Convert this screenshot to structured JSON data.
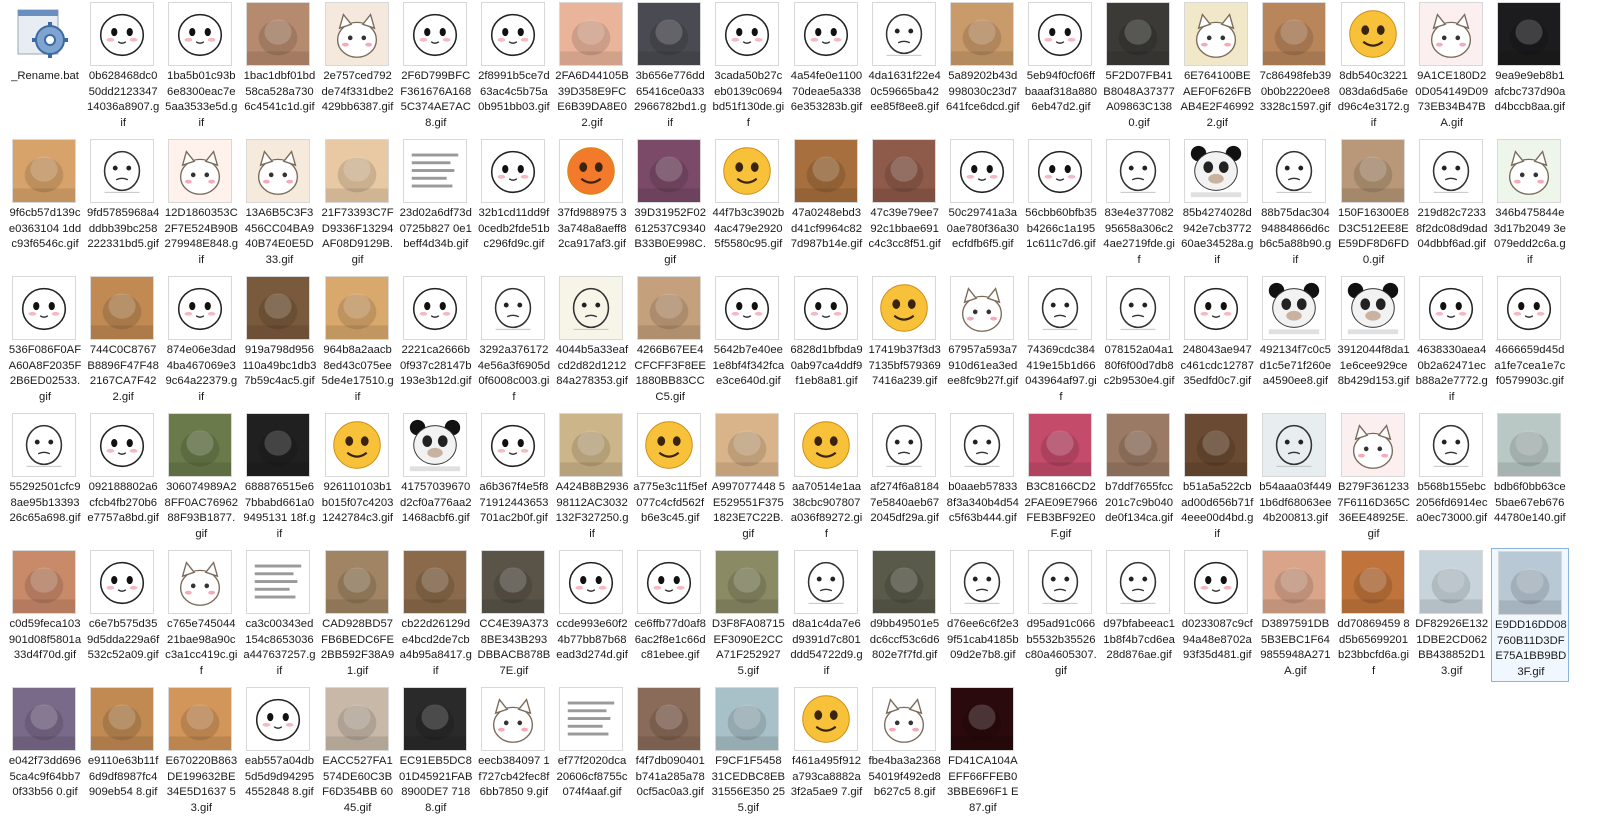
{
  "window": {
    "selected_item": "E9DD16DD08760B11D3DFE75A1BB9BD3F.gif"
  },
  "files": [
    {
      "name": "_Rename.bat",
      "icon": "gear-icon",
      "kind": "bat"
    },
    {
      "name": "0b628468dc050dd212334714036a8907.gif",
      "icon": "blob-face-sunglasses",
      "kind": "blob",
      "bg": "#ffffff"
    },
    {
      "name": "1ba5b01c93b6e8300eac7e5aa3533e5d.gif",
      "icon": "blob-face",
      "kind": "blob",
      "bg": "#ffffff"
    },
    {
      "name": "1bac1dbf01bd58ca528a7306c4541c1d.gif",
      "icon": "baby-photo",
      "kind": "photo",
      "bg": "#b58a6e"
    },
    {
      "name": "2e757ced792de74f331dbe2429bb6387.gif",
      "icon": "cartoon-animals",
      "kind": "cartoon",
      "bg": "#f4e9dc"
    },
    {
      "name": "2F6D799BFCF361676A1685C374AE7AC8.gif",
      "icon": "blob-face-caption",
      "kind": "blob",
      "bg": "#ffffff"
    },
    {
      "name": "2f8991b5ce7d63ac4c5b75a0b951bb03.gif",
      "icon": "blob-face",
      "kind": "blob",
      "bg": "#ffffff"
    },
    {
      "name": "2FA6D44105B39D358E9FCE6B39DA8E02.gif",
      "icon": "crying-baby-photo",
      "kind": "photo",
      "bg": "#e9b49a"
    },
    {
      "name": "3b656e776dd65416ce0a332966782bd1.gif",
      "icon": "man-photo-caption",
      "kind": "photo",
      "bg": "#4a4a52"
    },
    {
      "name": "3cada50b27ceb0139c0694bd51f130de.gif",
      "icon": "blob-face-blush",
      "kind": "blob",
      "bg": "#ffffff"
    },
    {
      "name": "4a54fe0e110070deae5a3386e353283b.gif",
      "icon": "blob-face",
      "kind": "blob",
      "bg": "#ffffff"
    },
    {
      "name": "4da1631f22e40c59665ba42ee85f8ee8.gif",
      "icon": "sketch-face",
      "kind": "sketch",
      "bg": "#ffffff"
    },
    {
      "name": "5a89202b43d998030c23d7641fce6dcd.gif",
      "icon": "dog-photo",
      "kind": "photo",
      "bg": "#c99a6a"
    },
    {
      "name": "5eb94f0cf06ffbaaaf318a8806eb47d2.gif",
      "icon": "blob-face",
      "kind": "blob",
      "bg": "#ffffff"
    },
    {
      "name": "5F2D07FB41B8048A37377A09863C1380.gif",
      "icon": "man-photo",
      "kind": "photo",
      "bg": "#3b3a36"
    },
    {
      "name": "6E764100BEAEF0F626FBAB4E2F469922.gif",
      "icon": "cartoon-character",
      "kind": "cartoon",
      "bg": "#f1e7c9"
    },
    {
      "name": "7c86498feb390b0b2220ee83328c1597.gif",
      "icon": "dog-photo",
      "kind": "photo",
      "bg": "#b9865c"
    },
    {
      "name": "8db540c3221083da6d5a6ed96c4e3172.gif",
      "icon": "emoji-faces",
      "kind": "emoji",
      "bg": "#ffffff"
    },
    {
      "name": "9A1CE180D20D054149D0973EB34B47BA.gif",
      "icon": "cartoon-cat",
      "kind": "cartoon",
      "bg": "#fbeff0"
    },
    {
      "name": "9ea9e9eb8b1afcbc737d90ad4bccb8aa.gif",
      "icon": "dark-photo",
      "kind": "photo",
      "bg": "#1c1c1e"
    },
    {
      "name": "9f6cb57d139ce0363104 1ddc93f6546c.gif",
      "icon": "dog-photo",
      "kind": "photo",
      "bg": "#d8a36a"
    },
    {
      "name": "9fd5785968a4ddbb39bc258222331bd5.gif",
      "icon": "sketch-face",
      "kind": "sketch",
      "bg": "#ffffff"
    },
    {
      "name": "12D1860353C2F7E524B90B279948E848.gif",
      "icon": "cartoon-hand",
      "kind": "cartoon",
      "bg": "#fff2ec"
    },
    {
      "name": "13A6B5C3F3456CC04BA940B74E0E5D33.gif",
      "icon": "cartoon-animals",
      "kind": "cartoon",
      "bg": "#f5eadc"
    },
    {
      "name": "21F73393C7FD9336F13294AF08D9129B.gif",
      "icon": "cat-photo",
      "kind": "photo",
      "bg": "#e8c9a4"
    },
    {
      "name": "23d02a6df73d0725b827 0e1beff4d34b.gif",
      "icon": "text-caption",
      "kind": "text",
      "bg": "#ffffff"
    },
    {
      "name": "32b1cd11dd9f0cedb2fde51bc296fd9c.gif",
      "icon": "crying-faces",
      "kind": "blob",
      "bg": "#ffffff"
    },
    {
      "name": "37fd988975 33a748a8aeff82ca917af3.gif",
      "icon": "orange-emoji",
      "kind": "emoji",
      "bg": "#ffffff"
    },
    {
      "name": "39D31952F02612537C9340B33B0E998C.gif",
      "icon": "pig-photo",
      "kind": "photo",
      "bg": "#7a4a68"
    },
    {
      "name": "44f7b3c3902b4ac479e29205f5580c95.gif",
      "icon": "yellow-emoji",
      "kind": "emoji",
      "bg": "#ffffff"
    },
    {
      "name": "47a0248ebd3d41cf9964c827d987b14e.gif",
      "icon": "dog-photo",
      "kind": "photo",
      "bg": "#a66f3d"
    },
    {
      "name": "47c39e79ee792c1bbae691c4c3cc8f51.gif",
      "icon": "man-photo",
      "kind": "photo",
      "bg": "#8e5a4a"
    },
    {
      "name": "50c29741a3a0ae780f36a30ecfdfb6f5.gif",
      "icon": "blob-face",
      "kind": "blob",
      "bg": "#ffffff"
    },
    {
      "name": "56cbb60bfb35b4266c1a1951c611c7d6.gif",
      "icon": "blob-face",
      "kind": "blob",
      "bg": "#ffffff"
    },
    {
      "name": "83e4e37708295658a306c24ae2719fde.gif",
      "icon": "comic-drawing",
      "kind": "sketch",
      "bg": "#ffffff"
    },
    {
      "name": "85b4274028d942e7cb377260ae34528a.gif",
      "icon": "panda-meme",
      "kind": "panda",
      "bg": "#ffffff"
    },
    {
      "name": "88b75dac30494884866d6cb6c5a88b90.gif",
      "icon": "sketch-ghost",
      "kind": "sketch",
      "bg": "#ffffff"
    },
    {
      "name": "150F16300E8D3C512EE8EE59DF8D6FD0.gif",
      "icon": "hamster-photo",
      "kind": "photo",
      "bg": "#b89878"
    },
    {
      "name": "219d82c72338f2dc08d9dad04dbbf6ad.gif",
      "icon": "sketch-face",
      "kind": "sketch",
      "bg": "#ffffff"
    },
    {
      "name": "346b475844e3d17b2049 3e079edd2c6a.gif",
      "icon": "cartoon-character",
      "kind": "cartoon",
      "bg": "#eef6ec"
    },
    {
      "name": "536F086F0AFA60A8F2035F2B6ED02533.gif",
      "icon": "blob-face-sunglasses",
      "kind": "blob",
      "bg": "#ffffff"
    },
    {
      "name": "744C0C8767B8896F47F482167CA7F422.gif",
      "icon": "dog-photo",
      "kind": "photo",
      "bg": "#c08a52"
    },
    {
      "name": "874e06e3dad4ba467069e39c64a22379.gif",
      "icon": "blob-face",
      "kind": "blob",
      "bg": "#ffffff"
    },
    {
      "name": "919a798d956110a49bc1db37b59c4ac5.gif",
      "icon": "dog-photo-caption",
      "kind": "photo",
      "bg": "#7a5a3c"
    },
    {
      "name": "964b8a2aacb8ed43c075ee5de4e17510.gif",
      "icon": "cat-photo",
      "kind": "photo",
      "bg": "#d9a86c"
    },
    {
      "name": "2221ca2666b0f937c28147b193e3b12d.gif",
      "icon": "blob-face",
      "kind": "blob",
      "bg": "#ffffff"
    },
    {
      "name": "3292a3761724e56a3f6905d0f6008c003.gif",
      "icon": "comic-drawing",
      "kind": "sketch",
      "bg": "#ffffff"
    },
    {
      "name": "4044b5a33eafcd2d82d121284a278353.gif",
      "icon": "comic-caption",
      "kind": "sketch",
      "bg": "#f7f4e8"
    },
    {
      "name": "4266B67EE4CFCFF3F8EE1880BB83CCC5.gif",
      "icon": "baby-photo",
      "kind": "photo",
      "bg": "#c4a07c"
    },
    {
      "name": "5642b7e40ee1e8bf4f342fcae3ce640d.gif",
      "icon": "blob-face-blush",
      "kind": "blob",
      "bg": "#ffffff"
    },
    {
      "name": "6828d1bfbda90ab97ca4ddf9f1eb8a81.gif",
      "icon": "blob-face",
      "kind": "blob",
      "bg": "#ffffff"
    },
    {
      "name": "17419b37f3d37135bf5793697416a239.gif",
      "icon": "yellow-emoji",
      "kind": "emoji",
      "bg": "#ffffff"
    },
    {
      "name": "67957a593a7910d61ea3edee8fc9b27f.gif",
      "icon": "cartoon-rabbit",
      "kind": "cartoon",
      "bg": "#ffffff"
    },
    {
      "name": "74369cdc384419e15b1d66043964af97.gif",
      "icon": "sketch-face",
      "kind": "sketch",
      "bg": "#ffffff"
    },
    {
      "name": "078152a04a180f6f00d7db8c2b9530e4.gif",
      "icon": "sketch-face",
      "kind": "sketch",
      "bg": "#ffffff"
    },
    {
      "name": "248043ae947c461cdc1278735edfd0c7.gif",
      "icon": "blob-face",
      "kind": "blob",
      "bg": "#ffffff"
    },
    {
      "name": "492134f7c0c5d1c5e71f260ea4590ee8.gif",
      "icon": "panda-meme",
      "kind": "panda",
      "bg": "#ffffff"
    },
    {
      "name": "3912044f8da11e6cee929ce8b429d153.gif",
      "icon": "panda-meme",
      "kind": "panda",
      "bg": "#ffffff"
    },
    {
      "name": "4638330aea40b2a62471ecb88a2e7772.gif",
      "icon": "blob-face",
      "kind": "blob",
      "bg": "#ffffff"
    },
    {
      "name": "4666659d45da1fe7cea1e7cf0579903c.gif",
      "icon": "crying-face",
      "kind": "blob",
      "bg": "#ffffff"
    },
    {
      "name": "55292501cfc98ae95b1339326c65a698.gif",
      "icon": "sketch-face",
      "kind": "sketch",
      "bg": "#ffffff"
    },
    {
      "name": "092188802a6cfcb4fb270b6e7757a8bd.gif",
      "icon": "blob-face",
      "kind": "blob",
      "bg": "#ffffff"
    },
    {
      "name": "306074989A28FF0AC7696288F93B1877.gif",
      "icon": "animal-photo",
      "kind": "photo",
      "bg": "#6a7a4a"
    },
    {
      "name": "688876515e67bbabd661a09495131 18f.gif",
      "icon": "dark-screen",
      "kind": "photo",
      "bg": "#202020"
    },
    {
      "name": "926110103b1b015f07c42031242784c3.gif",
      "icon": "yellow-emoji",
      "kind": "emoji",
      "bg": "#ffffff"
    },
    {
      "name": "41757039670d2cf0a776aa21468acbf6.gif",
      "icon": "panda-meme",
      "kind": "panda",
      "bg": "#ffffff"
    },
    {
      "name": "a6b367f4e5f871912443653701ac2b0f.gif",
      "icon": "blob-face",
      "kind": "blob",
      "bg": "#ffffff"
    },
    {
      "name": "A424B8B293698112AC3032132F327250.gif",
      "icon": "food-photo",
      "kind": "photo",
      "bg": "#cdb58a"
    },
    {
      "name": "a775e3c11f5ef077c4cfd562fb6e3c45.gif",
      "icon": "yellow-emoji",
      "kind": "emoji",
      "bg": "#ffffff"
    },
    {
      "name": "A997077448 5E529551F3751823E7C22B.gif",
      "icon": "dog-photo",
      "kind": "photo",
      "bg": "#d9b48a"
    },
    {
      "name": "aa70514e1aa38cbc907807a036f89272.gif",
      "icon": "crying-emoji",
      "kind": "emoji",
      "bg": "#ffffff"
    },
    {
      "name": "af274f6a81847e5840aeb672045df29a.gif",
      "icon": "music-notes",
      "kind": "sketch",
      "bg": "#ffffff"
    },
    {
      "name": "b0aaeb578338f3a340b4d54c5f63b444.gif",
      "icon": "sketch-face",
      "kind": "sketch",
      "bg": "#ffffff"
    },
    {
      "name": "B3C8166CD22FAE09E7966FEB3BF92E0F.gif",
      "icon": "costume-photo",
      "kind": "photo",
      "bg": "#c44b6a"
    },
    {
      "name": "b7ddf7655fcc201c7c9b040de0f134ca.gif",
      "icon": "baby-photo",
      "kind": "photo",
      "bg": "#9a7a64"
    },
    {
      "name": "b51a5a522cbad00d656b71f4eee00d4bd.gif",
      "icon": "man-photo",
      "kind": "photo",
      "bg": "#6a4a32"
    },
    {
      "name": "b54aaa03f4491b6df68063ee4b200813.gif",
      "icon": "sketch-face",
      "kind": "sketch",
      "bg": "#e8eef0"
    },
    {
      "name": "B279F361233 7F6116D365C36EE48925E.gif",
      "icon": "cartoon-cat",
      "kind": "cartoon",
      "bg": "#fbeff0"
    },
    {
      "name": "b568b155ebc2056fd6914eca0ec73000.gif",
      "icon": "sketch-ghost",
      "kind": "sketch",
      "bg": "#ffffff"
    },
    {
      "name": "bdb6f0bb63ce5bae67eb67644780e140.gif",
      "icon": "cat-photo-caption",
      "kind": "photo",
      "bg": "#b9c8c4"
    },
    {
      "name": "c0d59feca103901d08f5801a33d4f70d.gif",
      "icon": "dog-photo-caption",
      "kind": "photo",
      "bg": "#c98a6a"
    },
    {
      "name": "c6e7b575d359d5dda229a6f532c52a09.gif",
      "icon": "blob-face",
      "kind": "blob",
      "bg": "#ffffff"
    },
    {
      "name": "c765e74504421bae98a90cc3a1cc419c.gif",
      "icon": "cartoon-cat",
      "kind": "cartoon",
      "bg": "#ffffff"
    },
    {
      "name": "ca3c00343ed154c8653036a447637257.gif",
      "icon": "small-ui",
      "kind": "text",
      "bg": "#ffffff"
    },
    {
      "name": "CAD928BD57FB6BEDC6FE2BB592F38A91.gif",
      "icon": "cat-photo-caption",
      "kind": "photo",
      "bg": "#a08464"
    },
    {
      "name": "cb22d26129de4bcd2de7cba4b95a8417.gif",
      "icon": "dog-photo",
      "kind": "photo",
      "bg": "#8a6a4a"
    },
    {
      "name": "CC4E39A3738BE343B293DBBACB878B7E.gif",
      "icon": "cat-photo",
      "kind": "photo",
      "bg": "#5a5448"
    },
    {
      "name": "ccde993e60f24b77bb87b68ead3d274d.gif",
      "icon": "blob-face-blush",
      "kind": "blob",
      "bg": "#ffffff"
    },
    {
      "name": "ce6ffb77d0af86ac2f8e1c66dc81ebee.gif",
      "icon": "blob-face",
      "kind": "blob",
      "bg": "#ffffff"
    },
    {
      "name": "D3F8FA08715EF3090E2CCA71F2529275.gif",
      "icon": "cat-photo",
      "kind": "photo",
      "bg": "#8a8a64"
    },
    {
      "name": "d8a1c4da7e6d9391d7c801ddd54722d9.gif",
      "icon": "sketch-face",
      "kind": "sketch",
      "bg": "#ffffff"
    },
    {
      "name": "d9bb49501e5dc6ccf53c6d6802e7f7fd.gif",
      "icon": "man-photo",
      "kind": "photo",
      "bg": "#5a5a4a"
    },
    {
      "name": "d76ee6c6f2e39f51cab4185b09d2e7b8.gif",
      "icon": "sketch-face",
      "kind": "sketch",
      "bg": "#ffffff"
    },
    {
      "name": "d95ad91c066b5532b35526c80a4605307.gif",
      "icon": "sketch-face",
      "kind": "sketch",
      "bg": "#ffffff"
    },
    {
      "name": "d97bfabeeac11b8f4b7cd6ea28d876ae.gif",
      "icon": "sketch-cat",
      "kind": "sketch",
      "bg": "#ffffff"
    },
    {
      "name": "d0233087c9cf94a48e8702a93f35d481.gif",
      "icon": "crying-face",
      "kind": "blob",
      "bg": "#ffffff"
    },
    {
      "name": "D3897591DB5B3EBC1F649855948A271A.gif",
      "icon": "baby-photo",
      "kind": "photo",
      "bg": "#d9a48a"
    },
    {
      "name": "dd70869459 8d5b65699201b23bbcfd6a.gif",
      "icon": "food-photo",
      "kind": "photo",
      "bg": "#c0743c"
    },
    {
      "name": "DF82926E1321DBE2CD062BB438852D13.gif",
      "icon": "penguin-photo",
      "kind": "photo",
      "bg": "#c8d4dc"
    },
    {
      "name": "E9DD16DD08760B11D3DFE75A1BB9BD3F.gif",
      "icon": "penguin-photo",
      "kind": "photo",
      "bg": "#b8c8d4",
      "selected": true
    },
    {
      "name": "e042f73dd6965ca4c9f64bb70f33b56 0.gif",
      "icon": "anime-photo-caption",
      "kind": "photo",
      "bg": "#7a6a8a"
    },
    {
      "name": "e9110e63b11f6d9df8987fc4909eb54 8.gif",
      "icon": "dog-photo",
      "kind": "photo",
      "bg": "#c08a52"
    },
    {
      "name": "E670220B863DE199632BE34E5D1637 53.gif",
      "icon": "dog-photo",
      "kind": "photo",
      "bg": "#d2955a"
    },
    {
      "name": "eab557a04db5d5d9d942954552848 8.gif",
      "icon": "blob-face",
      "kind": "blob",
      "bg": "#ffffff"
    },
    {
      "name": "EACC527FA1574DE60C3BF6D354BB 6045.gif",
      "icon": "pig-photo",
      "kind": "photo",
      "bg": "#c8b8a8"
    },
    {
      "name": "EC91EB5DC801D45921FAB8900DE7 7188.gif",
      "icon": "cat-photo",
      "kind": "photo",
      "bg": "#2a2a2a"
    },
    {
      "name": "eecb384097 1f727cb42fec8f6bb7850 9.gif",
      "icon": "red-envelope",
      "kind": "cartoon",
      "bg": "#ffffff"
    },
    {
      "name": "ef77f2020dca20606cf8755c074f4aaf.gif",
      "icon": "text-document",
      "kind": "text",
      "bg": "#ffffff"
    },
    {
      "name": "f4f7db090401b741a285a780cf5ac0a3.gif",
      "icon": "dog-photo",
      "kind": "photo",
      "bg": "#8a6a58"
    },
    {
      "name": "F9CF1F5458 31CEDBC8EB31556E350 255.gif",
      "icon": "baby-photo-caption",
      "kind": "photo",
      "bg": "#a8c0c8"
    },
    {
      "name": "f461a495f912a793ca8882a3f2a5ae9 7.gif",
      "icon": "yellow-emoji",
      "kind": "emoji",
      "bg": "#ffffff"
    },
    {
      "name": "fbe4ba3a236854019f492ed8b627c5 8.gif",
      "icon": "cartoon-dog",
      "kind": "cartoon",
      "bg": "#ffffff"
    },
    {
      "name": "FD41CA104AEFF66FFEB03BBE696F1 E87.gif",
      "icon": "neon-thumbs-up",
      "kind": "photo",
      "bg": "#2a0a0c"
    }
  ]
}
